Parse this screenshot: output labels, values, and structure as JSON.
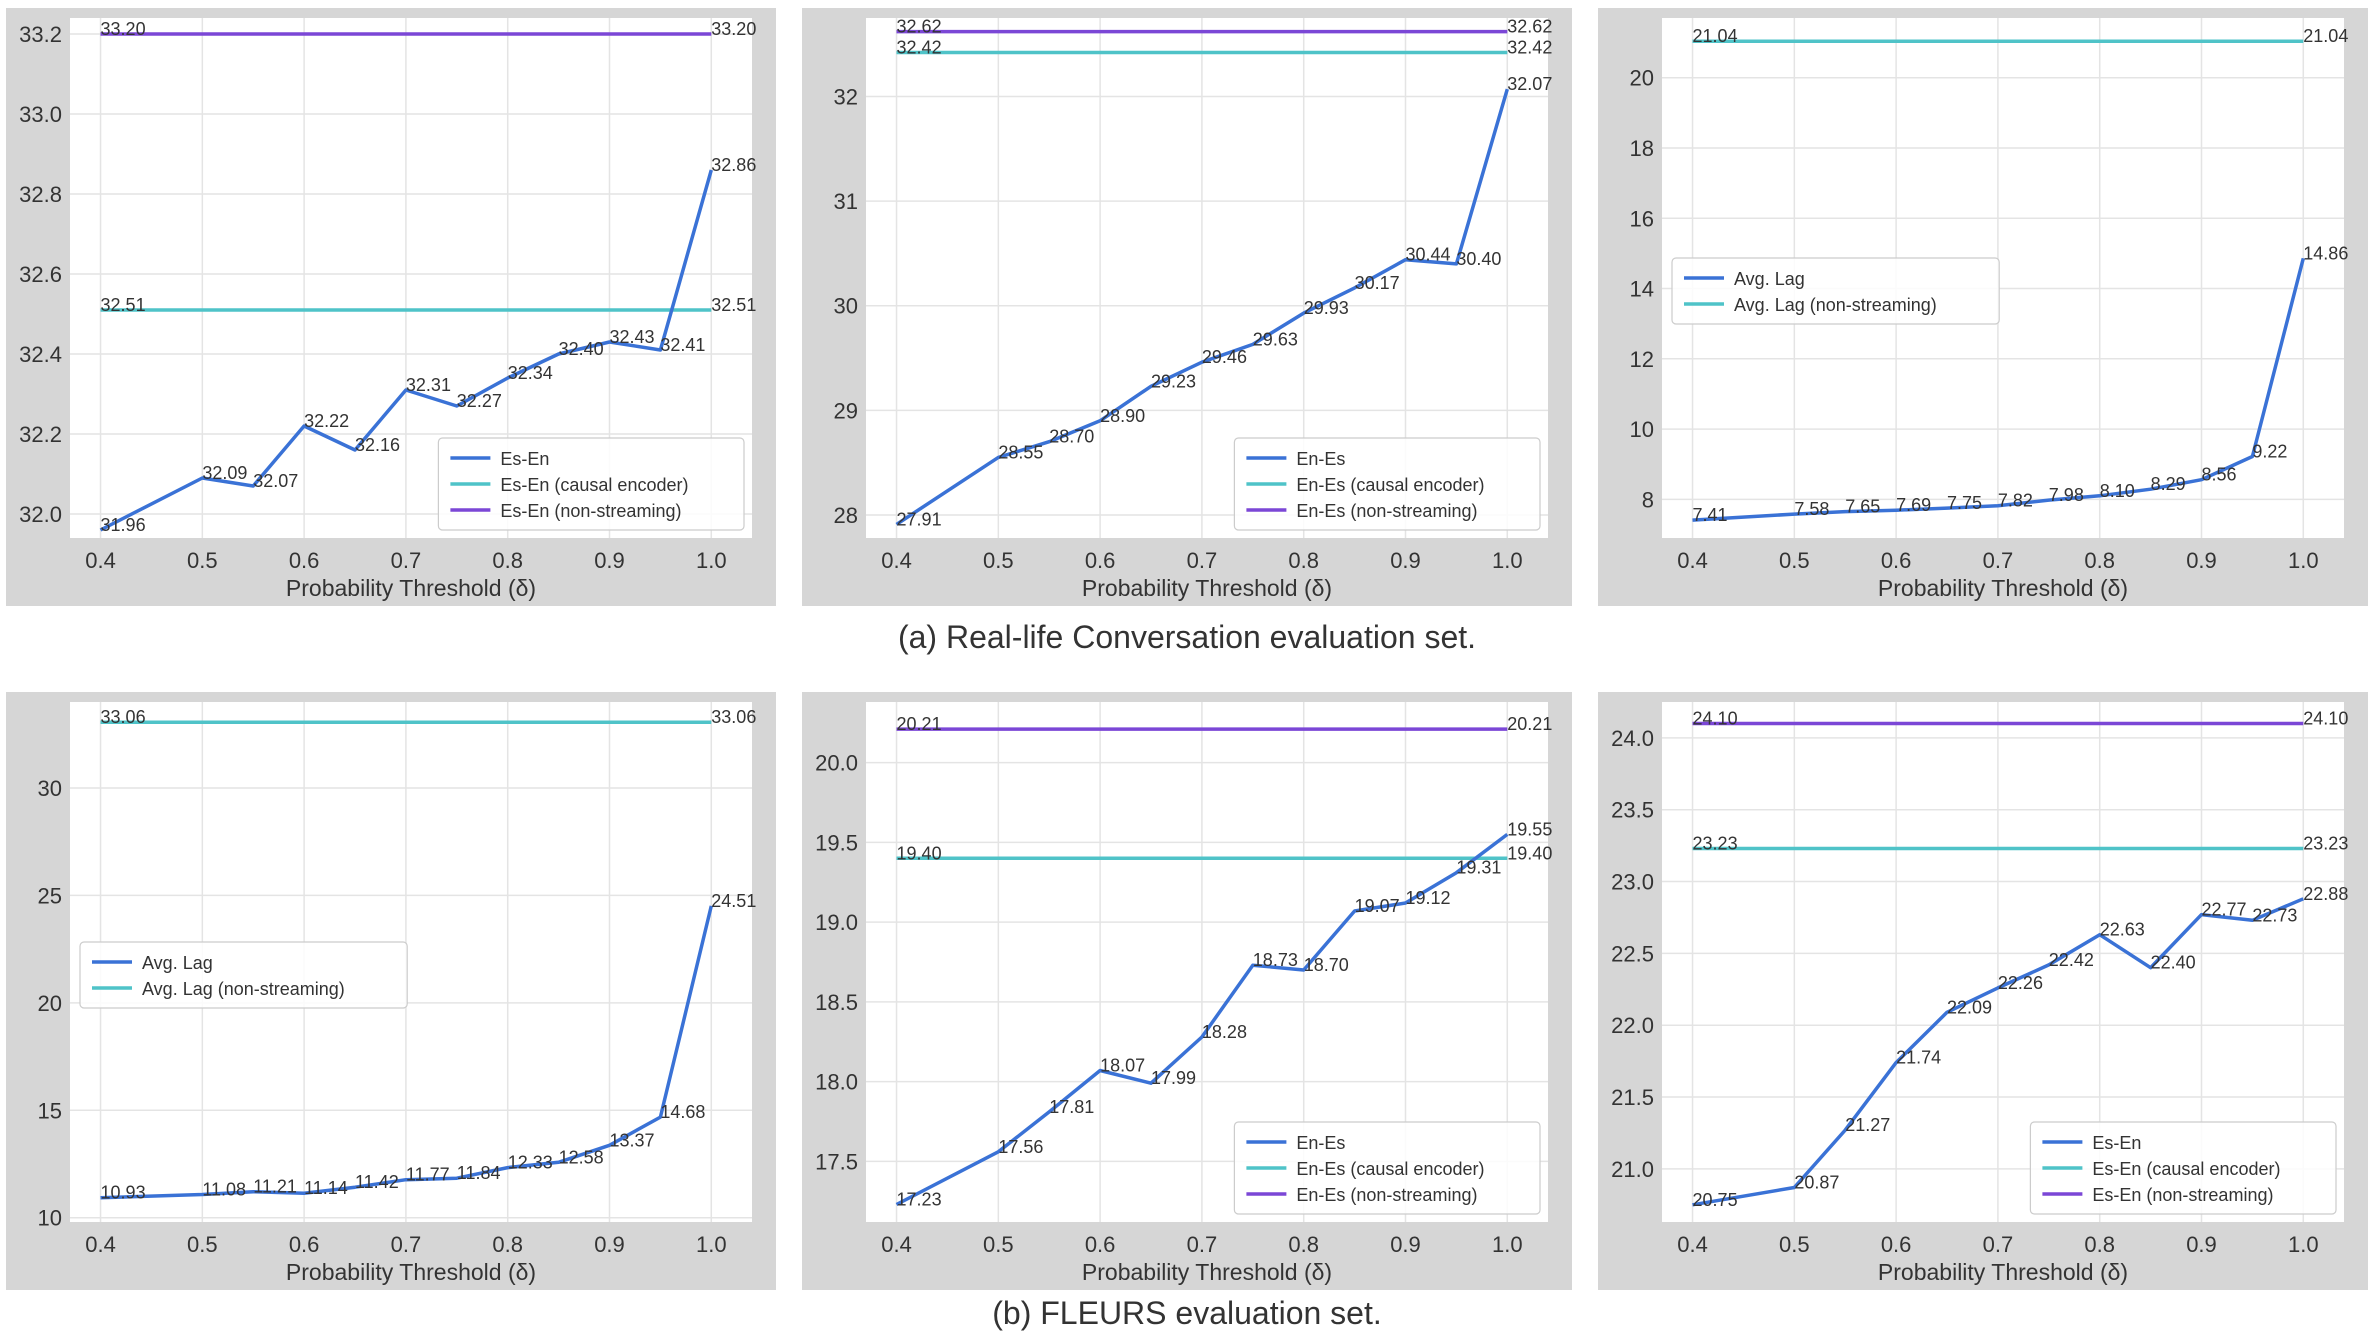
{
  "captions": {
    "a": "(a) Real-life Conversation evaluation set.",
    "b": "(b) FLEURS evaluation set."
  },
  "colors": {
    "series": "#3a72d6",
    "causal": "#4fc3c8",
    "nonstreaming": "#7b47d6",
    "frame": "#d6d6d6",
    "grid": "#e4e4e4",
    "text": "#333333"
  },
  "chart_data": [
    {
      "type": "line",
      "xlabel": "Probability Threshold (δ)",
      "xlim": [
        0.37,
        1.04
      ],
      "ylim": [
        31.94,
        33.24
      ],
      "xticks": [
        "0.4",
        "0.5",
        "0.6",
        "0.7",
        "0.8",
        "0.9",
        "1.0"
      ],
      "yticks": [
        "32.0",
        "32.2",
        "32.4",
        "32.6",
        "32.8",
        "33.0",
        "33.2"
      ],
      "legend_position": "lower right",
      "series": [
        {
          "name": "Es-En",
          "color": "#3a72d6",
          "x": [
            0.4,
            0.5,
            0.55,
            0.6,
            0.65,
            0.7,
            0.75,
            0.8,
            0.85,
            0.9,
            0.95,
            1.0
          ],
          "y": [
            31.96,
            32.09,
            32.07,
            32.22,
            32.16,
            32.31,
            32.27,
            32.34,
            32.4,
            32.43,
            32.41,
            32.86
          ],
          "labels": [
            "31.96",
            "32.09",
            "32.07",
            "32.22",
            "32.16",
            "32.31",
            "32.27",
            "32.34",
            "32.40",
            "32.43",
            "32.41",
            "32.86"
          ]
        },
        {
          "name": "Es-En (causal encoder)",
          "color": "#4fc3c8",
          "x": [
            0.4,
            1.0
          ],
          "y": [
            32.51,
            32.51
          ],
          "labels": [
            "32.51",
            "32.51"
          ]
        },
        {
          "name": "Es-En (non-streaming)",
          "color": "#7b47d6",
          "x": [
            0.4,
            1.0
          ],
          "y": [
            33.2,
            33.2
          ],
          "labels": [
            "33.20",
            "33.20"
          ]
        }
      ]
    },
    {
      "type": "line",
      "xlabel": "Probability Threshold (δ)",
      "xlim": [
        0.37,
        1.04
      ],
      "ylim": [
        27.78,
        32.75
      ],
      "xticks": [
        "0.4",
        "0.5",
        "0.6",
        "0.7",
        "0.8",
        "0.9",
        "1.0"
      ],
      "yticks": [
        "28",
        "29",
        "30",
        "31",
        "32"
      ],
      "legend_position": "lower right",
      "series": [
        {
          "name": "En-Es",
          "color": "#3a72d6",
          "x": [
            0.4,
            0.5,
            0.55,
            0.6,
            0.65,
            0.7,
            0.75,
            0.8,
            0.85,
            0.9,
            0.95,
            1.0
          ],
          "y": [
            27.91,
            28.55,
            28.7,
            28.9,
            29.23,
            29.46,
            29.63,
            29.93,
            30.17,
            30.44,
            30.4,
            32.07
          ],
          "labels": [
            "27.91",
            "28.55",
            "28.70",
            "28.90",
            "29.23",
            "29.46",
            "29.63",
            "29.93",
            "30.17",
            "30.44",
            "30.40",
            "32.07"
          ]
        },
        {
          "name": "En-Es (causal encoder)",
          "color": "#4fc3c8",
          "x": [
            0.4,
            1.0
          ],
          "y": [
            32.42,
            32.42
          ],
          "labels": [
            "32.42",
            "32.42"
          ]
        },
        {
          "name": "En-Es (non-streaming)",
          "color": "#7b47d6",
          "x": [
            0.4,
            1.0
          ],
          "y": [
            32.62,
            32.62
          ],
          "labels": [
            "32.62",
            "32.62"
          ]
        }
      ]
    },
    {
      "type": "line",
      "xlabel": "Probability Threshold (δ)",
      "xlim": [
        0.37,
        1.04
      ],
      "ylim": [
        6.9,
        21.7
      ],
      "xticks": [
        "0.4",
        "0.5",
        "0.6",
        "0.7",
        "0.8",
        "0.9",
        "1.0"
      ],
      "yticks": [
        "8",
        "10",
        "12",
        "14",
        "16",
        "18",
        "20"
      ],
      "legend_position": "upper left",
      "series": [
        {
          "name": "Avg. Lag",
          "color": "#3a72d6",
          "x": [
            0.4,
            0.5,
            0.55,
            0.6,
            0.65,
            0.7,
            0.75,
            0.8,
            0.85,
            0.9,
            0.95,
            1.0
          ],
          "y": [
            7.41,
            7.58,
            7.65,
            7.69,
            7.75,
            7.82,
            7.98,
            8.1,
            8.29,
            8.56,
            9.22,
            14.86
          ],
          "labels": [
            "7.41",
            "7.58",
            "7.65",
            "7.69",
            "7.75",
            "7.82",
            "7.98",
            "8.10",
            "8.29",
            "8.56",
            "9.22",
            "14.86"
          ]
        },
        {
          "name": "Avg. Lag (non-streaming)",
          "color": "#4fc3c8",
          "x": [
            0.4,
            1.0
          ],
          "y": [
            21.04,
            21.04
          ],
          "labels": [
            "21.04",
            "21.04"
          ]
        }
      ]
    },
    {
      "type": "line",
      "xlabel": "Probability Threshold (δ)",
      "xlim": [
        0.37,
        1.04
      ],
      "ylim": [
        9.8,
        34.0
      ],
      "xticks": [
        "0.4",
        "0.5",
        "0.6",
        "0.7",
        "0.8",
        "0.9",
        "1.0"
      ],
      "yticks": [
        "10",
        "15",
        "20",
        "25",
        "30"
      ],
      "legend_position": "center left",
      "series": [
        {
          "name": "Avg. Lag",
          "color": "#3a72d6",
          "x": [
            0.4,
            0.5,
            0.55,
            0.6,
            0.65,
            0.7,
            0.75,
            0.8,
            0.85,
            0.9,
            0.95,
            1.0
          ],
          "y": [
            10.93,
            11.08,
            11.21,
            11.14,
            11.42,
            11.77,
            11.84,
            12.33,
            12.58,
            13.37,
            14.68,
            24.51
          ],
          "labels": [
            "10.93",
            "11.08",
            "11.21",
            "11.14",
            "11.42",
            "11.77",
            "11.84",
            "12.33",
            "12.58",
            "13.37",
            "14.68",
            "24.51"
          ]
        },
        {
          "name": "Avg. Lag (non-streaming)",
          "color": "#4fc3c8",
          "x": [
            0.4,
            1.0
          ],
          "y": [
            33.06,
            33.06
          ],
          "labels": [
            "33.06",
            "33.06"
          ]
        }
      ]
    },
    {
      "type": "line",
      "xlabel": "Probability Threshold (δ)",
      "xlim": [
        0.37,
        1.04
      ],
      "ylim": [
        17.12,
        20.38
      ],
      "xticks": [
        "0.4",
        "0.5",
        "0.6",
        "0.7",
        "0.8",
        "0.9",
        "1.0"
      ],
      "yticks": [
        "17.5",
        "18.0",
        "18.5",
        "19.0",
        "19.5",
        "20.0"
      ],
      "legend_position": "lower right",
      "series": [
        {
          "name": "En-Es",
          "color": "#3a72d6",
          "x": [
            0.4,
            0.5,
            0.55,
            0.6,
            0.65,
            0.7,
            0.75,
            0.8,
            0.85,
            0.9,
            0.95,
            1.0
          ],
          "y": [
            17.23,
            17.56,
            17.81,
            18.07,
            17.99,
            18.28,
            18.73,
            18.7,
            19.07,
            19.12,
            19.31,
            19.55
          ],
          "labels": [
            "17.23",
            "17.56",
            "17.81",
            "18.07",
            "17.99",
            "18.28",
            "18.73",
            "18.70",
            "19.07",
            "19.12",
            "19.31",
            "19.55"
          ]
        },
        {
          "name": "En-Es (causal encoder)",
          "color": "#4fc3c8",
          "x": [
            0.4,
            1.0
          ],
          "y": [
            19.4,
            19.4
          ],
          "labels": [
            "19.40",
            "19.40"
          ]
        },
        {
          "name": "En-Es (non-streaming)",
          "color": "#7b47d6",
          "x": [
            0.4,
            1.0
          ],
          "y": [
            20.21,
            20.21
          ],
          "labels": [
            "20.21",
            "20.21"
          ]
        }
      ]
    },
    {
      "type": "line",
      "xlabel": "Probability Threshold (δ)",
      "xlim": [
        0.37,
        1.04
      ],
      "ylim": [
        20.63,
        24.25
      ],
      "xticks": [
        "0.4",
        "0.5",
        "0.6",
        "0.7",
        "0.8",
        "0.9",
        "1.0"
      ],
      "yticks": [
        "21.0",
        "21.5",
        "22.0",
        "22.5",
        "23.0",
        "23.5",
        "24.0"
      ],
      "legend_position": "lower right",
      "series": [
        {
          "name": "Es-En",
          "color": "#3a72d6",
          "x": [
            0.4,
            0.5,
            0.55,
            0.6,
            0.65,
            0.7,
            0.75,
            0.8,
            0.85,
            0.9,
            0.95,
            1.0
          ],
          "y": [
            20.75,
            20.87,
            21.27,
            21.74,
            22.09,
            22.26,
            22.42,
            22.63,
            22.4,
            22.77,
            22.73,
            22.88
          ],
          "labels": [
            "20.75",
            "20.87",
            "21.27",
            "21.74",
            "22.09",
            "22.26",
            "22.42",
            "22.63",
            "22.40",
            "22.77",
            "22.73",
            "22.88"
          ]
        },
        {
          "name": "Es-En (causal encoder)",
          "color": "#4fc3c8",
          "x": [
            0.4,
            1.0
          ],
          "y": [
            23.23,
            23.23
          ],
          "labels": [
            "23.23",
            "23.23"
          ]
        },
        {
          "name": "Es-En (non-streaming)",
          "color": "#7b47d6",
          "x": [
            0.4,
            1.0
          ],
          "y": [
            24.1,
            24.1
          ],
          "labels": [
            "24.10",
            "24.10"
          ]
        }
      ]
    }
  ]
}
